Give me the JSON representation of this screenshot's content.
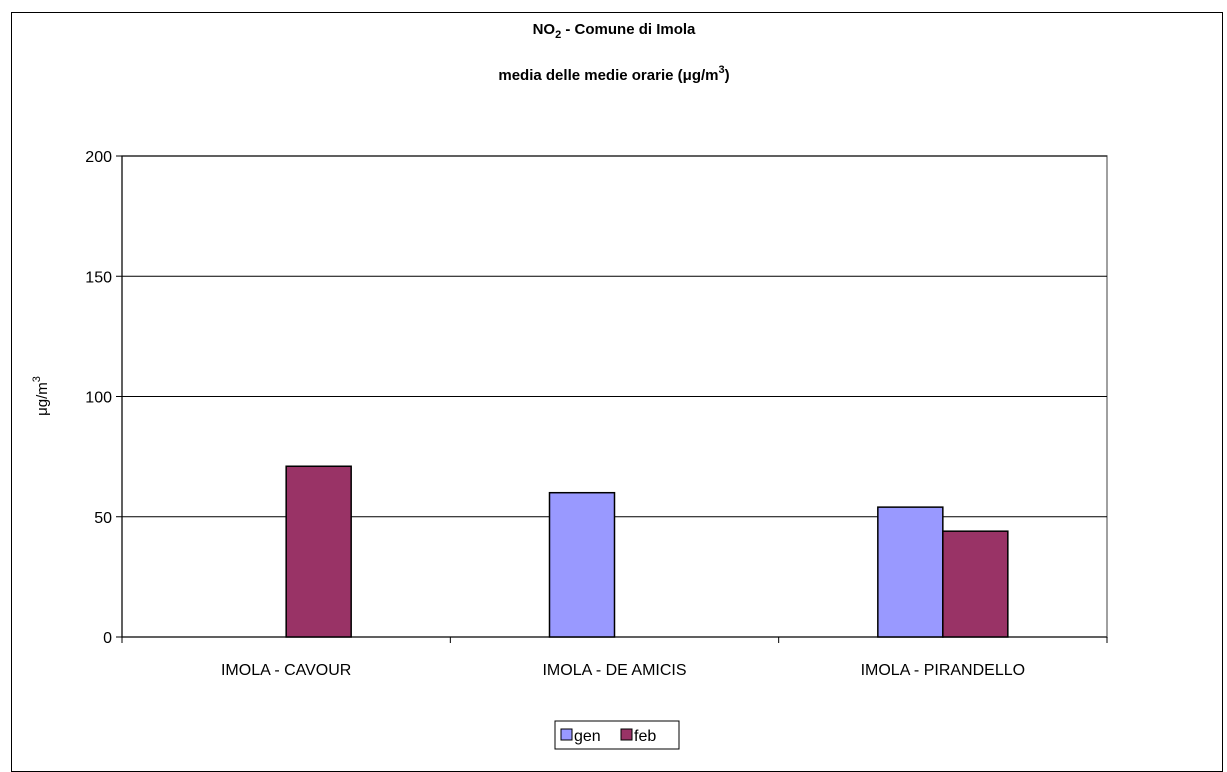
{
  "chart_data": {
    "type": "bar",
    "title_line1_main": "NO",
    "title_line1_sub": "2",
    "title_line1_rest": " - Comune di Imola",
    "title_line2_main": "media delle medie orarie (",
    "title_line2_mu": "μ",
    "title_line2_unit": "g/m",
    "title_line2_sup": "3",
    "title_line2_close": ")",
    "ylabel_main": "μg/m",
    "ylabel_sup": "3",
    "ylim": [
      0,
      200
    ],
    "yticks": [
      "0",
      "50",
      "100",
      "150",
      "200"
    ],
    "ytick_values": [
      0,
      50,
      100,
      150,
      200
    ],
    "grid": true,
    "legend_position": "bottom",
    "categories": [
      "IMOLA - CAVOUR",
      "IMOLA - DE AMICIS",
      "IMOLA - PIRANDELLO"
    ],
    "series": [
      {
        "name": "gen",
        "color": "#9999ff",
        "values": [
          null,
          60,
          54
        ]
      },
      {
        "name": "feb",
        "color": "#993366",
        "values": [
          71,
          null,
          44
        ]
      }
    ]
  }
}
